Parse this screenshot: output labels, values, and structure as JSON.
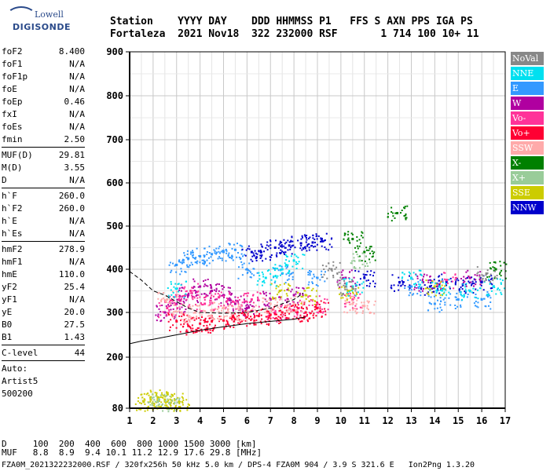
{
  "logo": {
    "line1": "Lowell",
    "line2": "DIGISONDE"
  },
  "header": {
    "line1": "Station    YYYY DAY    DDD HHMMSS P1   FFS S AXN PPS IGA PS",
    "line2": "Fortaleza  2021 Nov18  322 232000 RSF       1 714 100 10+ 11"
  },
  "params": [
    {
      "k": "foF2",
      "v": "8.400"
    },
    {
      "k": "foF1",
      "v": "N/A"
    },
    {
      "k": "foF1p",
      "v": "N/A"
    },
    {
      "k": "foE",
      "v": "N/A"
    },
    {
      "k": "foEp",
      "v": "0.46"
    },
    {
      "k": "fxI",
      "v": "N/A"
    },
    {
      "k": "foEs",
      "v": "N/A"
    },
    {
      "k": "fmin",
      "v": "2.50"
    },
    {
      "sep": true
    },
    {
      "k": "MUF(D)",
      "v": "29.81"
    },
    {
      "k": "M(D)",
      "v": "3.55"
    },
    {
      "k": "D",
      "v": "N/A"
    },
    {
      "sep": true
    },
    {
      "k": "h`F",
      "v": "260.0"
    },
    {
      "k": "h`F2",
      "v": "260.0"
    },
    {
      "k": "h`E",
      "v": "N/A"
    },
    {
      "k": "h`Es",
      "v": "N/A"
    },
    {
      "sep": true
    },
    {
      "k": "hmF2",
      "v": "278.9"
    },
    {
      "k": "hmF1",
      "v": "N/A"
    },
    {
      "k": "hmE",
      "v": "110.0"
    },
    {
      "k": "yF2",
      "v": "25.4"
    },
    {
      "k": "yF1",
      "v": "N/A"
    },
    {
      "k": "yE",
      "v": "20.0"
    },
    {
      "k": "B0",
      "v": "27.5"
    },
    {
      "k": "B1",
      "v": "1.43"
    },
    {
      "sep": true
    },
    {
      "k": "C-level",
      "v": "44"
    },
    {
      "sep": true
    },
    {
      "text": "Auto:"
    },
    {
      "text": "Artist5"
    },
    {
      "text": "500200"
    }
  ],
  "legend": [
    {
      "label": "NoVal",
      "color": "#888888"
    },
    {
      "label": "NNE",
      "color": "#00e0f0"
    },
    {
      "label": "E",
      "color": "#3399ff"
    },
    {
      "label": "W",
      "color": "#b000a0"
    },
    {
      "label": "Vo-",
      "color": "#ff3399"
    },
    {
      "label": "Vo+",
      "color": "#ff0033"
    },
    {
      "label": "SSW",
      "color": "#ffaaaa"
    },
    {
      "label": "X-",
      "color": "#008000"
    },
    {
      "label": "X+",
      "color": "#99cc99"
    },
    {
      "label": "SSE",
      "color": "#cccc00"
    },
    {
      "label": "NNW",
      "color": "#0000cc"
    }
  ],
  "chart_data": {
    "type": "scatter",
    "title": "",
    "xlabel": "",
    "ylabel": "",
    "xlim": [
      1,
      17
    ],
    "ylim": [
      80,
      900
    ],
    "xticks": [
      1,
      2,
      3,
      4,
      5,
      6,
      7,
      8,
      9,
      10,
      11,
      12,
      13,
      14,
      15,
      16,
      17
    ],
    "yticks": [
      80,
      200,
      300,
      400,
      500,
      600,
      700,
      800,
      900
    ],
    "grid": true,
    "legend_position": "right",
    "series": [
      {
        "name": "E",
        "color": "#3399ff",
        "points": [
          [
            3.0,
            410
          ],
          [
            3.5,
            425
          ],
          [
            4.0,
            430
          ],
          [
            4.5,
            435
          ],
          [
            5.0,
            440
          ],
          [
            5.5,
            445
          ],
          [
            6.0,
            400
          ],
          [
            7.5,
            390
          ],
          [
            9.0,
            380
          ],
          [
            13.0,
            360
          ],
          [
            14.0,
            320
          ],
          [
            15.0,
            330
          ],
          [
            16.0,
            330
          ]
        ]
      },
      {
        "name": "NNW",
        "color": "#0000cc",
        "points": [
          [
            6.2,
            440
          ],
          [
            6.6,
            440
          ],
          [
            7.2,
            450
          ],
          [
            7.8,
            455
          ],
          [
            8.3,
            460
          ],
          [
            8.8,
            462
          ],
          [
            9.2,
            465
          ],
          [
            11.0,
            380
          ],
          [
            12.5,
            370
          ],
          [
            13.8,
            360
          ],
          [
            14.5,
            370
          ],
          [
            15.2,
            365
          ],
          [
            16.0,
            370
          ]
        ]
      },
      {
        "name": "W",
        "color": "#b000a0",
        "points": [
          [
            2.5,
            300
          ],
          [
            3.0,
            320
          ],
          [
            3.5,
            340
          ],
          [
            4.0,
            360
          ],
          [
            4.5,
            350
          ],
          [
            5.0,
            340
          ],
          [
            5.5,
            320
          ],
          [
            6.0,
            310
          ],
          [
            7.0,
            330
          ],
          [
            8.0,
            340
          ],
          [
            10.2,
            380
          ],
          [
            13.5,
            370
          ],
          [
            15.5,
            380
          ]
        ]
      },
      {
        "name": "Vo-",
        "color": "#ff3399",
        "points": [
          [
            2.6,
            310
          ],
          [
            3.1,
            330
          ],
          [
            3.6,
            350
          ],
          [
            4.2,
            320
          ],
          [
            4.8,
            335
          ],
          [
            5.4,
            325
          ],
          [
            6.2,
            330
          ],
          [
            7.2,
            300
          ],
          [
            8.2,
            310
          ],
          [
            9.0,
            320
          ],
          [
            10.5,
            330
          ],
          [
            14.5,
            375
          ]
        ]
      },
      {
        "name": "Vo+",
        "color": "#ff0033",
        "points": [
          [
            3.0,
            280
          ],
          [
            3.5,
            270
          ],
          [
            4.0,
            275
          ],
          [
            4.5,
            280
          ],
          [
            5.0,
            282
          ],
          [
            5.5,
            285
          ],
          [
            6.0,
            290
          ],
          [
            6.5,
            292
          ],
          [
            7.0,
            295
          ],
          [
            7.5,
            300
          ],
          [
            8.0,
            305
          ],
          [
            8.5,
            300
          ],
          [
            9.0,
            310
          ]
        ]
      },
      {
        "name": "SSW",
        "color": "#ffaaaa",
        "points": [
          [
            2.6,
            330
          ],
          [
            3.2,
            300
          ],
          [
            3.8,
            300
          ],
          [
            4.5,
            305
          ],
          [
            5.2,
            300
          ],
          [
            6.0,
            300
          ],
          [
            7.0,
            320
          ],
          [
            8.0,
            320
          ],
          [
            10.5,
            320
          ],
          [
            11.0,
            315
          ]
        ]
      },
      {
        "name": "SSE",
        "color": "#cccc00",
        "points": [
          [
            1.6,
            95
          ],
          [
            1.9,
            100
          ],
          [
            2.2,
            105
          ],
          [
            2.5,
            100
          ],
          [
            2.8,
            98
          ],
          [
            3.1,
            95
          ],
          [
            7.4,
            350
          ],
          [
            8.5,
            340
          ],
          [
            10.3,
            350
          ],
          [
            14.0,
            360
          ]
        ]
      },
      {
        "name": "NNE",
        "color": "#00e0f0",
        "points": [
          [
            3.0,
            355
          ],
          [
            6.8,
            380
          ],
          [
            7.5,
            400
          ],
          [
            8.0,
            420
          ],
          [
            10.5,
            360
          ],
          [
            13.0,
            380
          ],
          [
            14.2,
            360
          ],
          [
            15.5,
            350
          ],
          [
            16.5,
            360
          ]
        ]
      },
      {
        "name": "X-",
        "color": "#008000",
        "points": [
          [
            10.5,
            470
          ],
          [
            11.0,
            440
          ],
          [
            12.4,
            530
          ],
          [
            16.6,
            400
          ]
        ]
      },
      {
        "name": "X+",
        "color": "#99cc99",
        "points": [
          [
            2.2,
            95
          ],
          [
            2.7,
            92
          ],
          [
            10.8,
            420
          ]
        ]
      },
      {
        "name": "NoVal",
        "color": "#888888",
        "points": [
          [
            9.6,
            400
          ],
          [
            10.2,
            360
          ],
          [
            16.2,
            390
          ]
        ]
      }
    ]
  },
  "bottom": {
    "d_line": "D     100  200  400  600  800 1000 1500 3000 [km]",
    "muf_line": "MUF   8.8  8.9  9.4 10.1 11.2 12.9 17.6 29.8 [MHz]"
  },
  "footer": "FZA0M_2021322232000.RSF / 320fx256h 50 kHz 5.0 km / DPS-4 FZA0M 904 / 3.9 S 321.6 E   Ion2Png 1.3.20"
}
